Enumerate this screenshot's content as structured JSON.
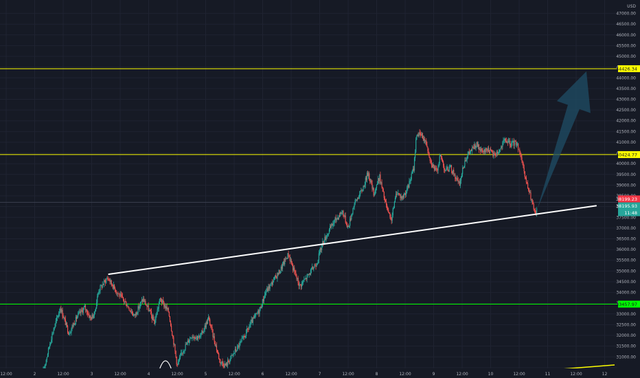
{
  "chart_data": {
    "type": "candlestick",
    "currency": "USD",
    "ylim": [
      30100,
      47150
    ],
    "y_ticks": [
      30500,
      31000,
      31500,
      32000,
      32500,
      33000,
      33500,
      34000,
      34500,
      35000,
      35500,
      36000,
      36500,
      37000,
      37500,
      38000,
      38500,
      39000,
      39500,
      40000,
      40500,
      41000,
      41500,
      42000,
      42500,
      43000,
      43500,
      44000,
      44500,
      45000,
      45500,
      46000,
      46500,
      47000
    ],
    "y_tick_labels": [
      "30500.00",
      "31000.00",
      "31500.00",
      "32000.00",
      "32500.00",
      "33000.00",
      "33500.00",
      "34000.00",
      "34500.00",
      "35000.00",
      "35500.00",
      "36000.00",
      "36500.00",
      "37000.00",
      "37500.00",
      "38000.00",
      "38500.00",
      "39000.00",
      "39500.00",
      "40000.00",
      "40500.00",
      "41000.00",
      "41500.00",
      "42000.00",
      "42500.00",
      "43000.00",
      "43500.00",
      "44000.00",
      "44500.00",
      "45000.00",
      "45500.00",
      "46000.00",
      "46500.00",
      "47000.00"
    ],
    "x_ticks": [
      {
        "label": "12:00",
        "t": 1.5
      },
      {
        "label": "2",
        "t": 2
      },
      {
        "label": "12:00",
        "t": 2.5
      },
      {
        "label": "3",
        "t": 3
      },
      {
        "label": "12:00",
        "t": 3.5
      },
      {
        "label": "4",
        "t": 4
      },
      {
        "label": "12:00",
        "t": 4.5
      },
      {
        "label": "5",
        "t": 5
      },
      {
        "label": "12:00",
        "t": 5.5
      },
      {
        "label": "6",
        "t": 6
      },
      {
        "label": "12:00",
        "t": 6.5
      },
      {
        "label": "7",
        "t": 7
      },
      {
        "label": "12:00",
        "t": 7.5
      },
      {
        "label": "8",
        "t": 8
      },
      {
        "label": "12:00",
        "t": 8.5
      },
      {
        "label": "9",
        "t": 9
      },
      {
        "label": "12:00",
        "t": 9.5
      },
      {
        "label": "10",
        "t": 10
      },
      {
        "label": "12:00",
        "t": 10.5
      },
      {
        "label": "11",
        "t": 11
      },
      {
        "label": "12:00",
        "t": 11.5
      },
      {
        "label": "12",
        "t": 12
      }
    ],
    "xlim": [
      1.42,
      12.38
    ],
    "price_path": [
      [
        2.15,
        30300
      ],
      [
        2.3,
        32000
      ],
      [
        2.45,
        33300
      ],
      [
        2.6,
        32100
      ],
      [
        2.75,
        32900
      ],
      [
        2.88,
        33300
      ],
      [
        2.98,
        32800
      ],
      [
        3.05,
        33000
      ],
      [
        3.12,
        34100
      ],
      [
        3.28,
        34700
      ],
      [
        3.45,
        34000
      ],
      [
        3.6,
        33500
      ],
      [
        3.75,
        32900
      ],
      [
        3.9,
        33700
      ],
      [
        4.0,
        33200
      ],
      [
        4.1,
        32600
      ],
      [
        4.2,
        33700
      ],
      [
        4.35,
        33100
      ],
      [
        4.45,
        31500
      ],
      [
        4.5,
        30600
      ],
      [
        4.6,
        31300
      ],
      [
        4.75,
        32000
      ],
      [
        4.9,
        31900
      ],
      [
        5.05,
        32800
      ],
      [
        5.15,
        31800
      ],
      [
        5.25,
        30800
      ],
      [
        5.35,
        30600
      ],
      [
        5.5,
        31200
      ],
      [
        5.65,
        31800
      ],
      [
        5.8,
        32600
      ],
      [
        5.95,
        33200
      ],
      [
        6.05,
        34000
      ],
      [
        6.15,
        34400
      ],
      [
        6.3,
        35000
      ],
      [
        6.45,
        35800
      ],
      [
        6.55,
        35000
      ],
      [
        6.65,
        34300
      ],
      [
        6.8,
        34800
      ],
      [
        6.95,
        35400
      ],
      [
        7.05,
        36300
      ],
      [
        7.15,
        36800
      ],
      [
        7.25,
        37300
      ],
      [
        7.4,
        37800
      ],
      [
        7.5,
        37000
      ],
      [
        7.6,
        38100
      ],
      [
        7.75,
        38800
      ],
      [
        7.85,
        39600
      ],
      [
        7.95,
        38600
      ],
      [
        8.05,
        39400
      ],
      [
        8.15,
        38200
      ],
      [
        8.25,
        37300
      ],
      [
        8.35,
        38700
      ],
      [
        8.45,
        38400
      ],
      [
        8.55,
        38900
      ],
      [
        8.65,
        39800
      ],
      [
        8.7,
        41400
      ],
      [
        8.8,
        41300
      ],
      [
        8.88,
        40900
      ],
      [
        8.95,
        40100
      ],
      [
        9.05,
        39600
      ],
      [
        9.12,
        40400
      ],
      [
        9.2,
        39700
      ],
      [
        9.3,
        39800
      ],
      [
        9.38,
        39400
      ],
      [
        9.45,
        39000
      ],
      [
        9.55,
        40200
      ],
      [
        9.65,
        40600
      ],
      [
        9.75,
        40900
      ],
      [
        9.85,
        40500
      ],
      [
        9.95,
        40700
      ],
      [
        10.05,
        40400
      ],
      [
        10.15,
        40600
      ],
      [
        10.25,
        41100
      ],
      [
        10.35,
        40900
      ],
      [
        10.45,
        41000
      ],
      [
        10.52,
        40500
      ],
      [
        10.58,
        39600
      ],
      [
        10.65,
        38900
      ],
      [
        10.72,
        38300
      ],
      [
        10.78,
        37600
      ],
      [
        10.82,
        37900
      ]
    ],
    "horizontal_levels": [
      {
        "value": 44426.34,
        "label": "44426.34",
        "color": "#ffff00"
      },
      {
        "value": 40424.77,
        "label": "40424.77",
        "color": "#ffff00"
      },
      {
        "value": 33457.97,
        "label": "33457.97",
        "color": "#00ff00"
      }
    ],
    "price_tags": [
      {
        "value": 38199.23,
        "label": "38199.23",
        "color": "#f23645"
      },
      {
        "value": 38195.93,
        "label": "38195.93",
        "color": "#26a69a"
      }
    ],
    "countdown": "11:48",
    "trendline": {
      "start": [
        3.3,
        34850
      ],
      "end": [
        11.85,
        38040
      ],
      "color": "#ffffff"
    },
    "projection_arrow": {
      "from": [
        10.82,
        37900
      ],
      "to": [
        11.68,
        44300
      ],
      "color": "#1f4e66"
    }
  }
}
